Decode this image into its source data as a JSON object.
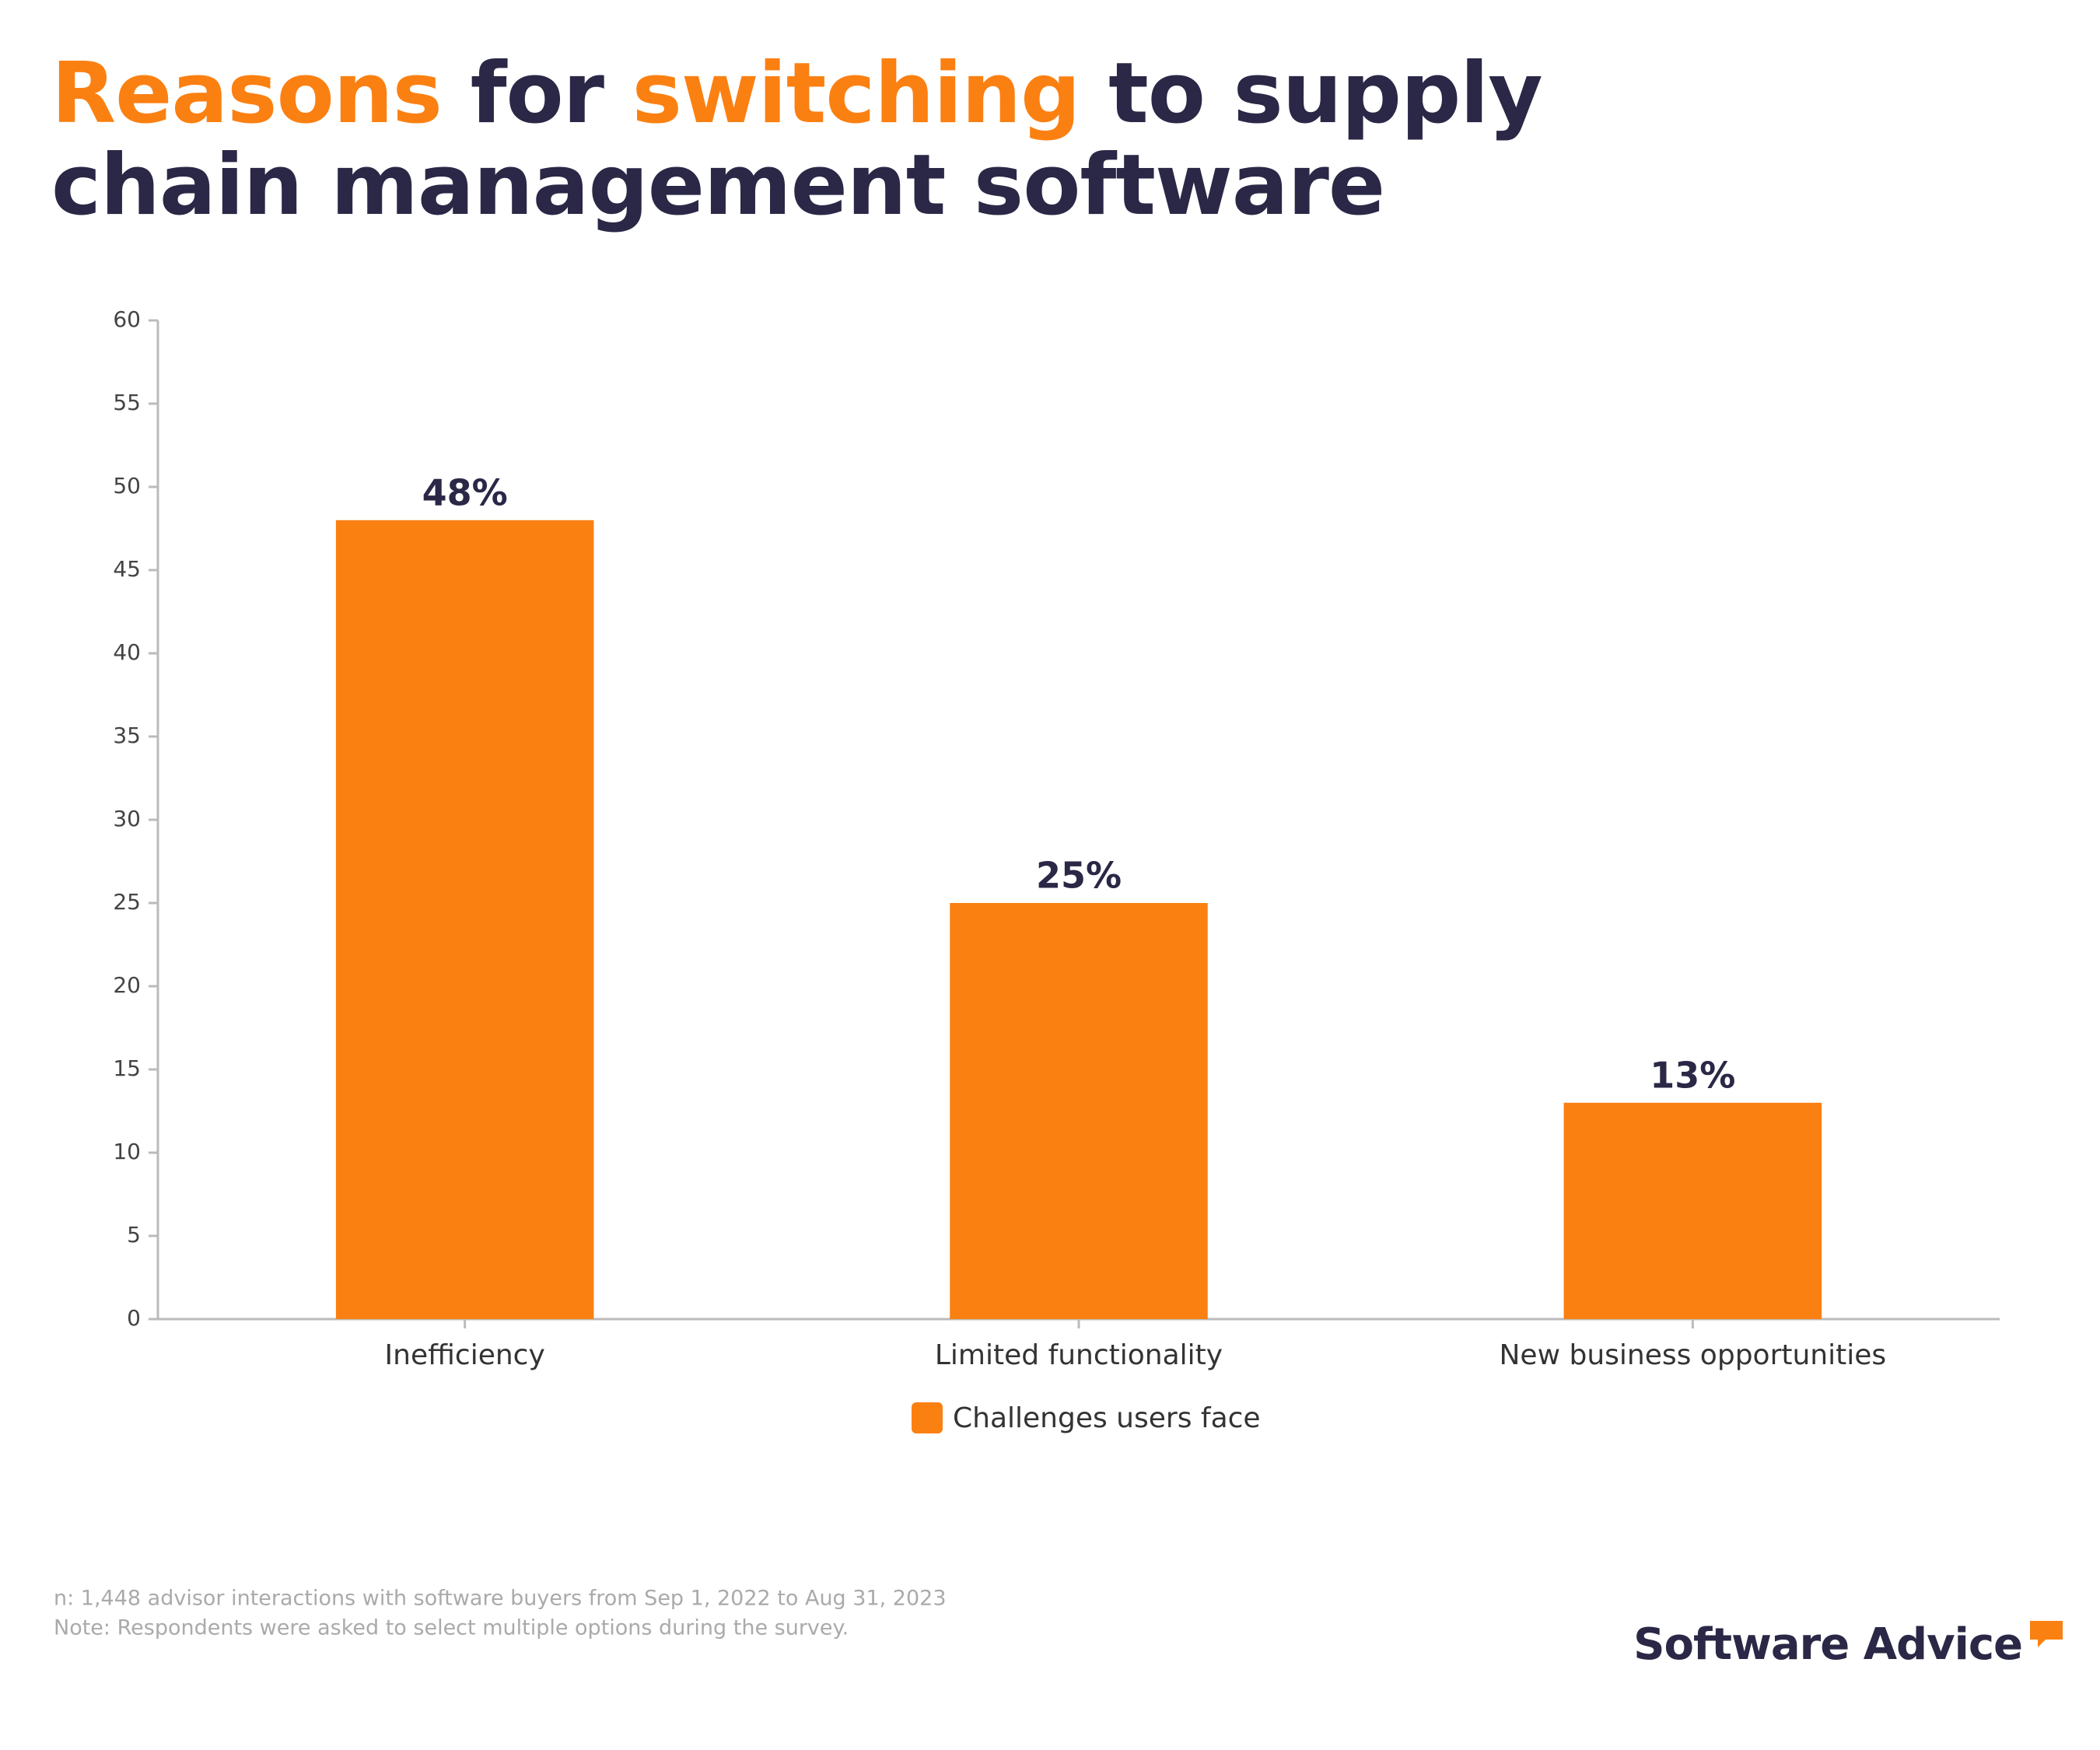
{
  "chart_data": {
    "type": "bar",
    "title": [
      "Reasons",
      "for",
      "switching",
      "to supply chain management software"
    ],
    "title_colors": [
      "#fb8012",
      "#2a2846",
      "#fb8012",
      "#2a2846"
    ],
    "categories": [
      "Inefficiency",
      "Limited functionality",
      "New business opportunities"
    ],
    "series": [
      {
        "name": "Challenges users face",
        "color": "#fb8012",
        "values": [
          48,
          25,
          13
        ],
        "value_labels": [
          "48%",
          "25%",
          "13%"
        ]
      }
    ],
    "ylim": [
      0,
      60
    ],
    "yticks": [
      0,
      5,
      10,
      15,
      20,
      25,
      30,
      35,
      40,
      45,
      50,
      55,
      60
    ],
    "grid": false,
    "legend": "bottom",
    "footnotes": [
      "n: 1,448 advisor interactions with software buyers from Sep 1, 2022 to Aug 31, 2023",
      "Note: Respondents were asked to select multiple options during the survey."
    ],
    "brand": "Software Advice"
  }
}
